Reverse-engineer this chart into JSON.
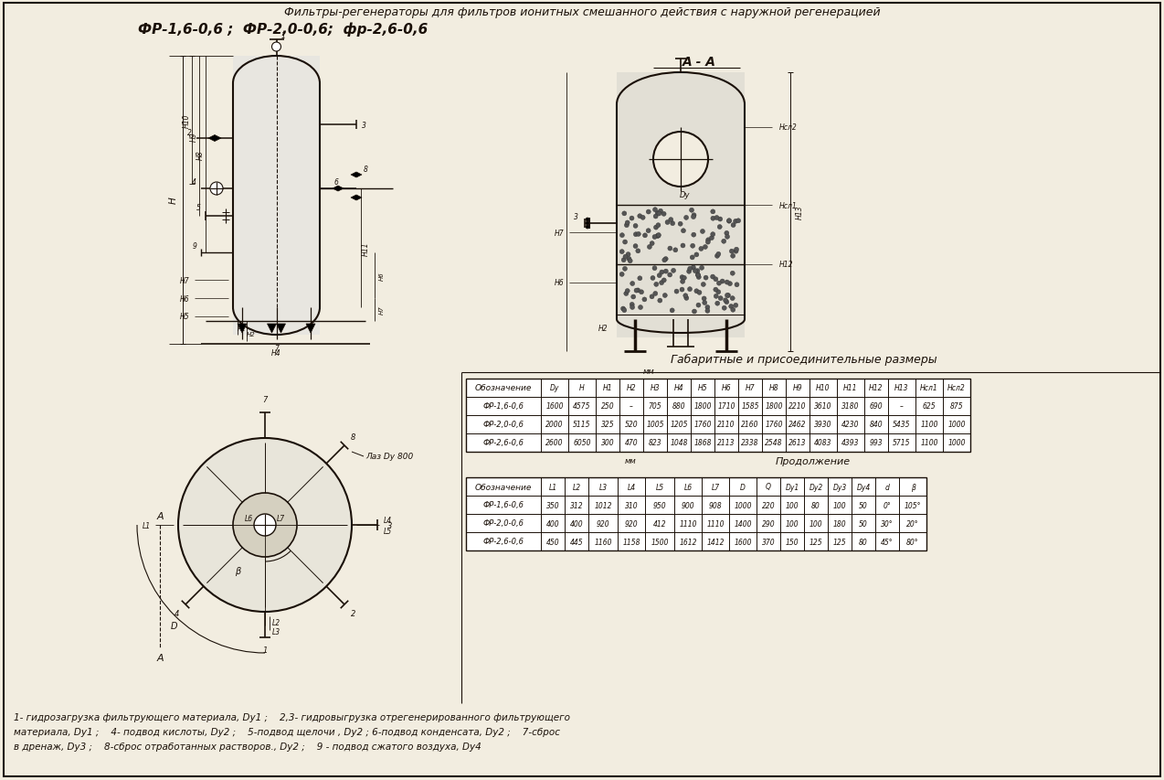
{
  "title_line1": "Фильтры-регенераторы для фильтров ионитных смешанного действия с наружной регенерацией",
  "title_line2": "ФР-1,6-0,6 ;  ФР-2,0-0,6;  фр-2,6-0,6",
  "section_label": "А - А",
  "table1_title": "Габаритные и присоединительные размеры",
  "table1_note": "мм",
  "table2_note": "мм",
  "table2_continuation": "Продолжение",
  "table1_headers": [
    "Обозначение",
    "Dy",
    "H",
    "H1",
    "H2",
    "H3",
    "H4",
    "H5",
    "H6",
    "H7",
    "H8",
    "H9",
    "H10",
    "H11",
    "H12",
    "H13",
    "Hсл1",
    "Hсл2"
  ],
  "table1_rows": [
    [
      "ФР-1,6-0,6",
      "1600",
      "4575",
      "250",
      "–",
      "705",
      "880",
      "1800",
      "1710",
      "1585",
      "1800",
      "2210",
      "3610",
      "3180",
      "690",
      "–",
      "625",
      "875"
    ],
    [
      "ФР-2,0-0,6",
      "2000",
      "5115",
      "325",
      "520",
      "1005",
      "1205",
      "1760",
      "2110",
      "2160",
      "1760",
      "2462",
      "3930",
      "4230",
      "840",
      "5435",
      "1100",
      "1000"
    ],
    [
      "ФР-2,6-0,6",
      "2600",
      "6050",
      "300",
      "470",
      "823",
      "1048",
      "1868",
      "2113",
      "2338",
      "2548",
      "2613",
      "4083",
      "4393",
      "993",
      "5715",
      "1100",
      "1000"
    ]
  ],
  "table2_headers": [
    "Обозначение",
    "L1",
    "L2",
    "L3",
    "L4",
    "L5",
    "L6",
    "L7",
    "D",
    "Q",
    "Dy1",
    "Dy2",
    "Dy3",
    "Dy4",
    "d",
    "β"
  ],
  "table2_rows": [
    [
      "ФР-1,6-0,6",
      "350",
      "312",
      "1012",
      "310",
      "950",
      "900",
      "908",
      "1000",
      "220",
      "100",
      "80",
      "100",
      "50",
      "0°",
      "105°"
    ],
    [
      "ФР-2,0-0,6",
      "400",
      "400",
      "920",
      "920",
      "412",
      "1110",
      "1110",
      "1400",
      "290",
      "100",
      "100",
      "180",
      "50",
      "30°",
      "20°"
    ],
    [
      "ФР-2,6-0,6",
      "450",
      "445",
      "1160",
      "1158",
      "1500",
      "1612",
      "1412",
      "1600",
      "370",
      "150",
      "125",
      "125",
      "80",
      "45°",
      "80°"
    ]
  ],
  "footnote_line1": "1- гидрозагрузка фильтрующего материала, Dy1 ;    2,3- гидровыгрузка отрегенерированного фильтрующего",
  "footnote_line2": "материала, Dy1 ;    4- подвод кислоты, Dy2 ;    5-подвод щелочи , Dy2 ; 6-подвод конденсата, Dy2 ;    7-сброс",
  "footnote_line3": "в дренаж, Dy3 ;    8-сброс отработанных растворов., Dy2 ;    9 - подвод сжатого воздуха, Dy4",
  "bg_color": "#f2ede0",
  "line_color": "#1a1008",
  "text_color": "#1a1008"
}
